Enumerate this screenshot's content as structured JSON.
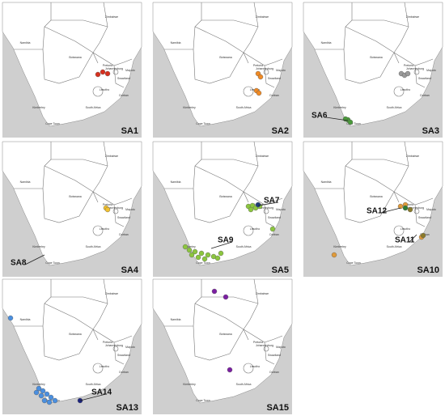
{
  "panels": [
    {
      "label": "SA1",
      "groups": [
        {
          "color": "#d7301f"
        }
      ],
      "sites": []
    },
    {
      "label": "SA2",
      "groups": [
        {
          "color": "#f08a24"
        }
      ],
      "sites": []
    },
    {
      "label": "SA3",
      "groups": [
        {
          "color": "#9a9a9a"
        },
        {
          "color": "#4a9a3a"
        }
      ],
      "sites": [
        "SA6"
      ]
    },
    {
      "label": "SA4",
      "groups": [
        {
          "color": "#f2c12e"
        }
      ],
      "sites": [
        "SA8"
      ]
    },
    {
      "label": "SA5",
      "groups": [
        {
          "color": "#8cc63f"
        },
        {
          "color": "#1f3d7a"
        }
      ],
      "sites": [
        "SA7",
        "SA9"
      ]
    },
    {
      "label": "SA10",
      "groups": [
        {
          "color": "#e09a3a"
        },
        {
          "color": "#8a7a2a"
        },
        {
          "color": "#2e7d32"
        }
      ],
      "sites": [
        "SA12",
        "SA11"
      ]
    },
    {
      "label": "SA13",
      "groups": [
        {
          "color": "#4a8fe0"
        },
        {
          "color": "#1a237e"
        }
      ],
      "sites": [
        "SA14"
      ]
    },
    {
      "label": "SA15",
      "groups": [
        {
          "color": "#7b1fa2"
        }
      ],
      "sites": []
    }
  ],
  "map_labels": [
    "Namibia",
    "Botswana",
    "Zimbabwe",
    "Pretoria",
    "Johannesburg",
    "Maputo",
    "Swaziland",
    "Lesotho",
    "Durban",
    "South Africa",
    "Kimberley",
    "Cape Town"
  ]
}
